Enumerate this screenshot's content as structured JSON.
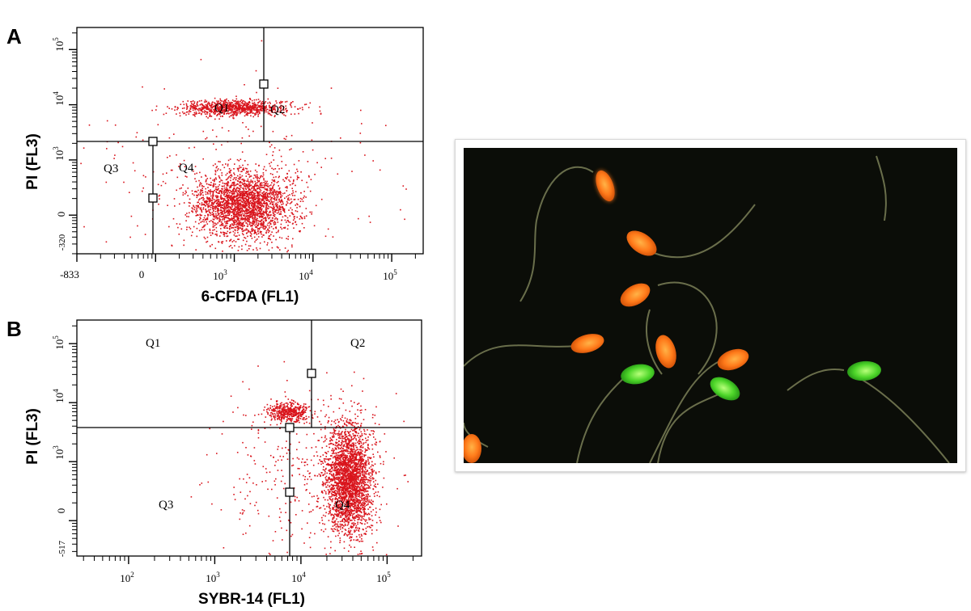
{
  "figure": {
    "panel_labels": [
      "A",
      "B"
    ]
  },
  "chart_data": [
    {
      "type": "scatter",
      "panel": "A",
      "xlabel": "6-CFDA (FL1)",
      "ylabel": "PI (FL3)",
      "x_scale": "log",
      "y_scale": "log",
      "x_ticks": [
        "-833",
        "0",
        "10^3",
        "10^4",
        "10^5"
      ],
      "y_ticks": [
        "-320",
        "0",
        "10^3",
        "10^4",
        "10^5"
      ],
      "quadrants": [
        "Q1",
        "Q2",
        "Q3",
        "Q4"
      ],
      "gates": [
        {
          "x_log": 3.45,
          "y_log": 4.2
        },
        {
          "x_log": 2.2,
          "y_log": 3.05
        },
        {
          "x_log": 2.2,
          "y_log": 2.1
        }
      ],
      "quadrant_divider": {
        "x_upper_log": 3.45,
        "x_lower_log": 2.2,
        "y_log": 3.05
      },
      "point_color": "#d9141c",
      "clusters": [
        {
          "cx_log": 3.0,
          "cy_log": 3.95,
          "sx": 0.35,
          "sy": 0.07,
          "n": 900
        },
        {
          "cx_log": 3.1,
          "cy_log": 2.2,
          "sx": 0.32,
          "sy": 0.3,
          "n": 2400
        },
        {
          "cx_log": 3.1,
          "cy_log": 2.6,
          "sx": 0.9,
          "sy": 0.8,
          "n": 300
        }
      ],
      "gridlines": false,
      "legend": "none"
    },
    {
      "type": "scatter",
      "panel": "B",
      "xlabel": "SYBR-14 (FL1)",
      "ylabel": "PI (FL3)",
      "x_scale": "log",
      "y_scale": "log",
      "x_ticks": [
        "10^2",
        "10^3",
        "10^4",
        "10^5"
      ],
      "y_ticks": [
        "-517",
        "0",
        "10^3",
        "10^4",
        "10^5"
      ],
      "quadrants": [
        "Q1",
        "Q2",
        "Q3",
        "Q4"
      ],
      "gates": [
        {
          "x_log": 4.15,
          "y_log": 4.35
        },
        {
          "x_log": 3.9,
          "y_log": 3.6
        },
        {
          "x_log": 3.9,
          "y_log": 2.35
        }
      ],
      "quadrant_divider": {
        "x_upper_log": 4.15,
        "x_lower_log": 3.9,
        "y_log": 3.6
      },
      "point_color": "#d9141c",
      "clusters": [
        {
          "cx_log": 3.85,
          "cy_log": 3.85,
          "sx": 0.12,
          "sy": 0.08,
          "n": 450
        },
        {
          "cx_log": 4.55,
          "cy_log": 2.7,
          "sx": 0.14,
          "sy": 0.45,
          "n": 2600
        },
        {
          "cx_log": 4.0,
          "cy_log": 2.9,
          "sx": 0.5,
          "sy": 0.7,
          "n": 350
        }
      ],
      "gridlines": false,
      "legend": "none"
    }
  ]
}
